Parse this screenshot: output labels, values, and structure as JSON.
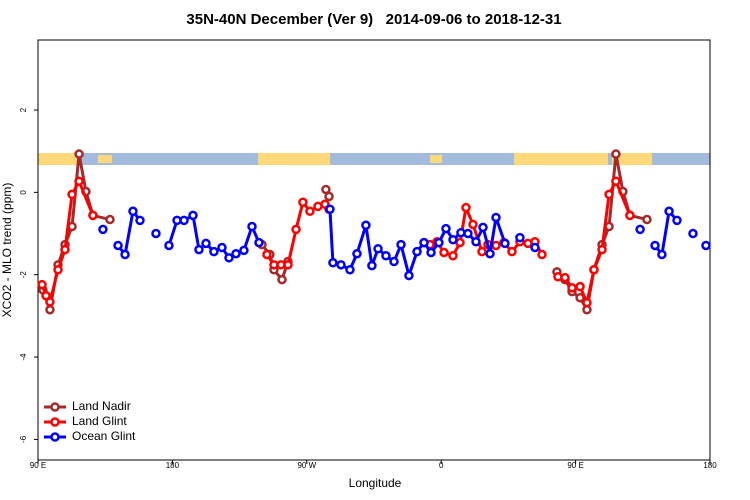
{
  "chart_data": {
    "type": "line",
    "title": "35N-40N December (Ver 9)   2014-09-06 to 2018-12-31",
    "x_label": "Longitude",
    "y_label": "XCO2 - MLO trend (ppm)",
    "xlim": [
      90,
      540
    ],
    "xticks": [
      {
        "value": 90,
        "label": "90 E"
      },
      180,
      {
        "value": 270,
        "label": "90 W"
      },
      {
        "value": 360,
        "label": "0"
      },
      {
        "value": 450,
        "label": "90 E"
      },
      {
        "value": 540,
        "label": "180"
      }
    ],
    "ylim": [
      -6.5,
      3.7
    ],
    "yticks": [
      -6,
      -4,
      -2,
      0,
      2
    ],
    "legend": "bottomleft",
    "series": [
      {
        "name": "Land Nadir",
        "color": "#a52a2a",
        "x": [
          93.3,
          98.0,
          103.4,
          108.1,
          112.8,
          117.5,
          122.1,
          126.8,
          138.2,
          null,
          240.0,
          245.3,
          248.0,
          253.4,
          257.4,
          null,
          282.8,
          284.9,
          null,
          437.5,
          442.9,
          447.6,
          453.0,
          457.6,
          462.3,
          467.7,
          472.4,
          477.0,
          481.7,
          486.4,
          497.8
        ],
        "values": [
          -2.37,
          -2.85,
          -1.76,
          -1.27,
          -0.83,
          0.93,
          0.02,
          -0.56,
          -0.66,
          null,
          -1.27,
          -1.51,
          -1.88,
          -2.12,
          -1.68,
          null,
          0.07,
          -0.1,
          null,
          -1.93,
          -2.12,
          -2.41,
          -2.56,
          -2.85,
          -1.88,
          -1.27,
          -0.83,
          0.93,
          0.02,
          -0.56,
          -0.66
        ]
      },
      {
        "name": "Land Glint",
        "color": "#ff0000",
        "x": [
          92.7,
          95.4,
          98.0,
          103.4,
          108.1,
          112.8,
          117.5,
          126.8,
          null,
          243.3,
          248.0,
          252.7,
          257.4,
          262.8,
          267.4,
          272.1,
          277.5,
          282.2,
          284.9,
          null,
          348.5,
          352.5,
          357.2,
          361.9,
          367.9,
          372.6,
          376.6,
          381.3,
          387.3,
          null,
          391.3,
          396.7,
          402.0,
          407.4,
          412.7,
          418.1,
          422.8,
          427.5,
          null,
          438.2,
          442.9,
          447.6,
          453.0,
          457.6,
          462.3,
          467.7,
          472.4,
          477.0,
          486.4
        ],
        "values": [
          -2.24,
          -2.51,
          -2.66,
          -1.88,
          -1.39,
          -0.05,
          0.27,
          -0.56,
          null,
          -1.51,
          -1.76,
          -1.76,
          -1.76,
          -0.9,
          -0.24,
          -0.46,
          -0.34,
          -0.29,
          -0.41,
          null,
          -1.22,
          -1.27,
          -1.2,
          -1.46,
          -1.54,
          -1.22,
          -0.37,
          -0.78,
          -1.44,
          null,
          -1.27,
          -1.29,
          -1.22,
          -1.44,
          -1.2,
          -1.24,
          -1.2,
          -1.51,
          null,
          -2.05,
          -2.07,
          -2.32,
          -2.29,
          -2.68,
          -1.88,
          -1.39,
          -0.05,
          0.27,
          -0.56
        ]
      },
      {
        "name": "Ocean Glint",
        "color": "#0000ff",
        "x": [
          133.5,
          null,
          143.6,
          148.3,
          153.6,
          158.3,
          null,
          169.0,
          null,
          177.7,
          183.1,
          187.8,
          193.8,
          197.8,
          202.5,
          207.8,
          213.2,
          217.9,
          222.6,
          227.9,
          233.3,
          238.0,
          null,
          285.5,
          287.5,
          292.9,
          298.9,
          303.6,
          309.6,
          313.6,
          317.7,
          323.0,
          328.4,
          333.1,
          338.4,
          343.8,
          348.5,
          353.2,
          358.5,
          363.2,
          367.9,
          373.2,
          377.9,
          383.3,
          388.0,
          392.7,
          396.7,
          402.7,
          null,
          412.7,
          null,
          422.8,
          null,
          493.2,
          null,
          503.2,
          507.8,
          512.6,
          517.9,
          null,
          528.6,
          null,
          537.3
        ],
        "values": [
          -0.9,
          null,
          -1.29,
          -1.51,
          -0.46,
          -0.68,
          null,
          -1.0,
          null,
          -1.29,
          -0.68,
          -0.68,
          -0.56,
          -1.39,
          -1.24,
          -1.44,
          -1.34,
          -1.59,
          -1.49,
          -1.41,
          -0.83,
          -1.22,
          null,
          -0.41,
          -1.71,
          -1.76,
          -1.88,
          -1.49,
          -0.8,
          -1.78,
          -1.37,
          -1.54,
          -1.68,
          -1.27,
          -2.02,
          -1.44,
          -1.22,
          -1.46,
          -1.22,
          -0.88,
          -1.15,
          -0.98,
          -1.0,
          -1.2,
          -0.85,
          -1.49,
          -0.61,
          -1.24,
          null,
          -1.1,
          null,
          -1.34,
          null,
          -0.9,
          null,
          -1.29,
          -1.51,
          -0.46,
          -0.68,
          null,
          -1.0,
          null,
          -1.29
        ]
      }
    ]
  }
}
